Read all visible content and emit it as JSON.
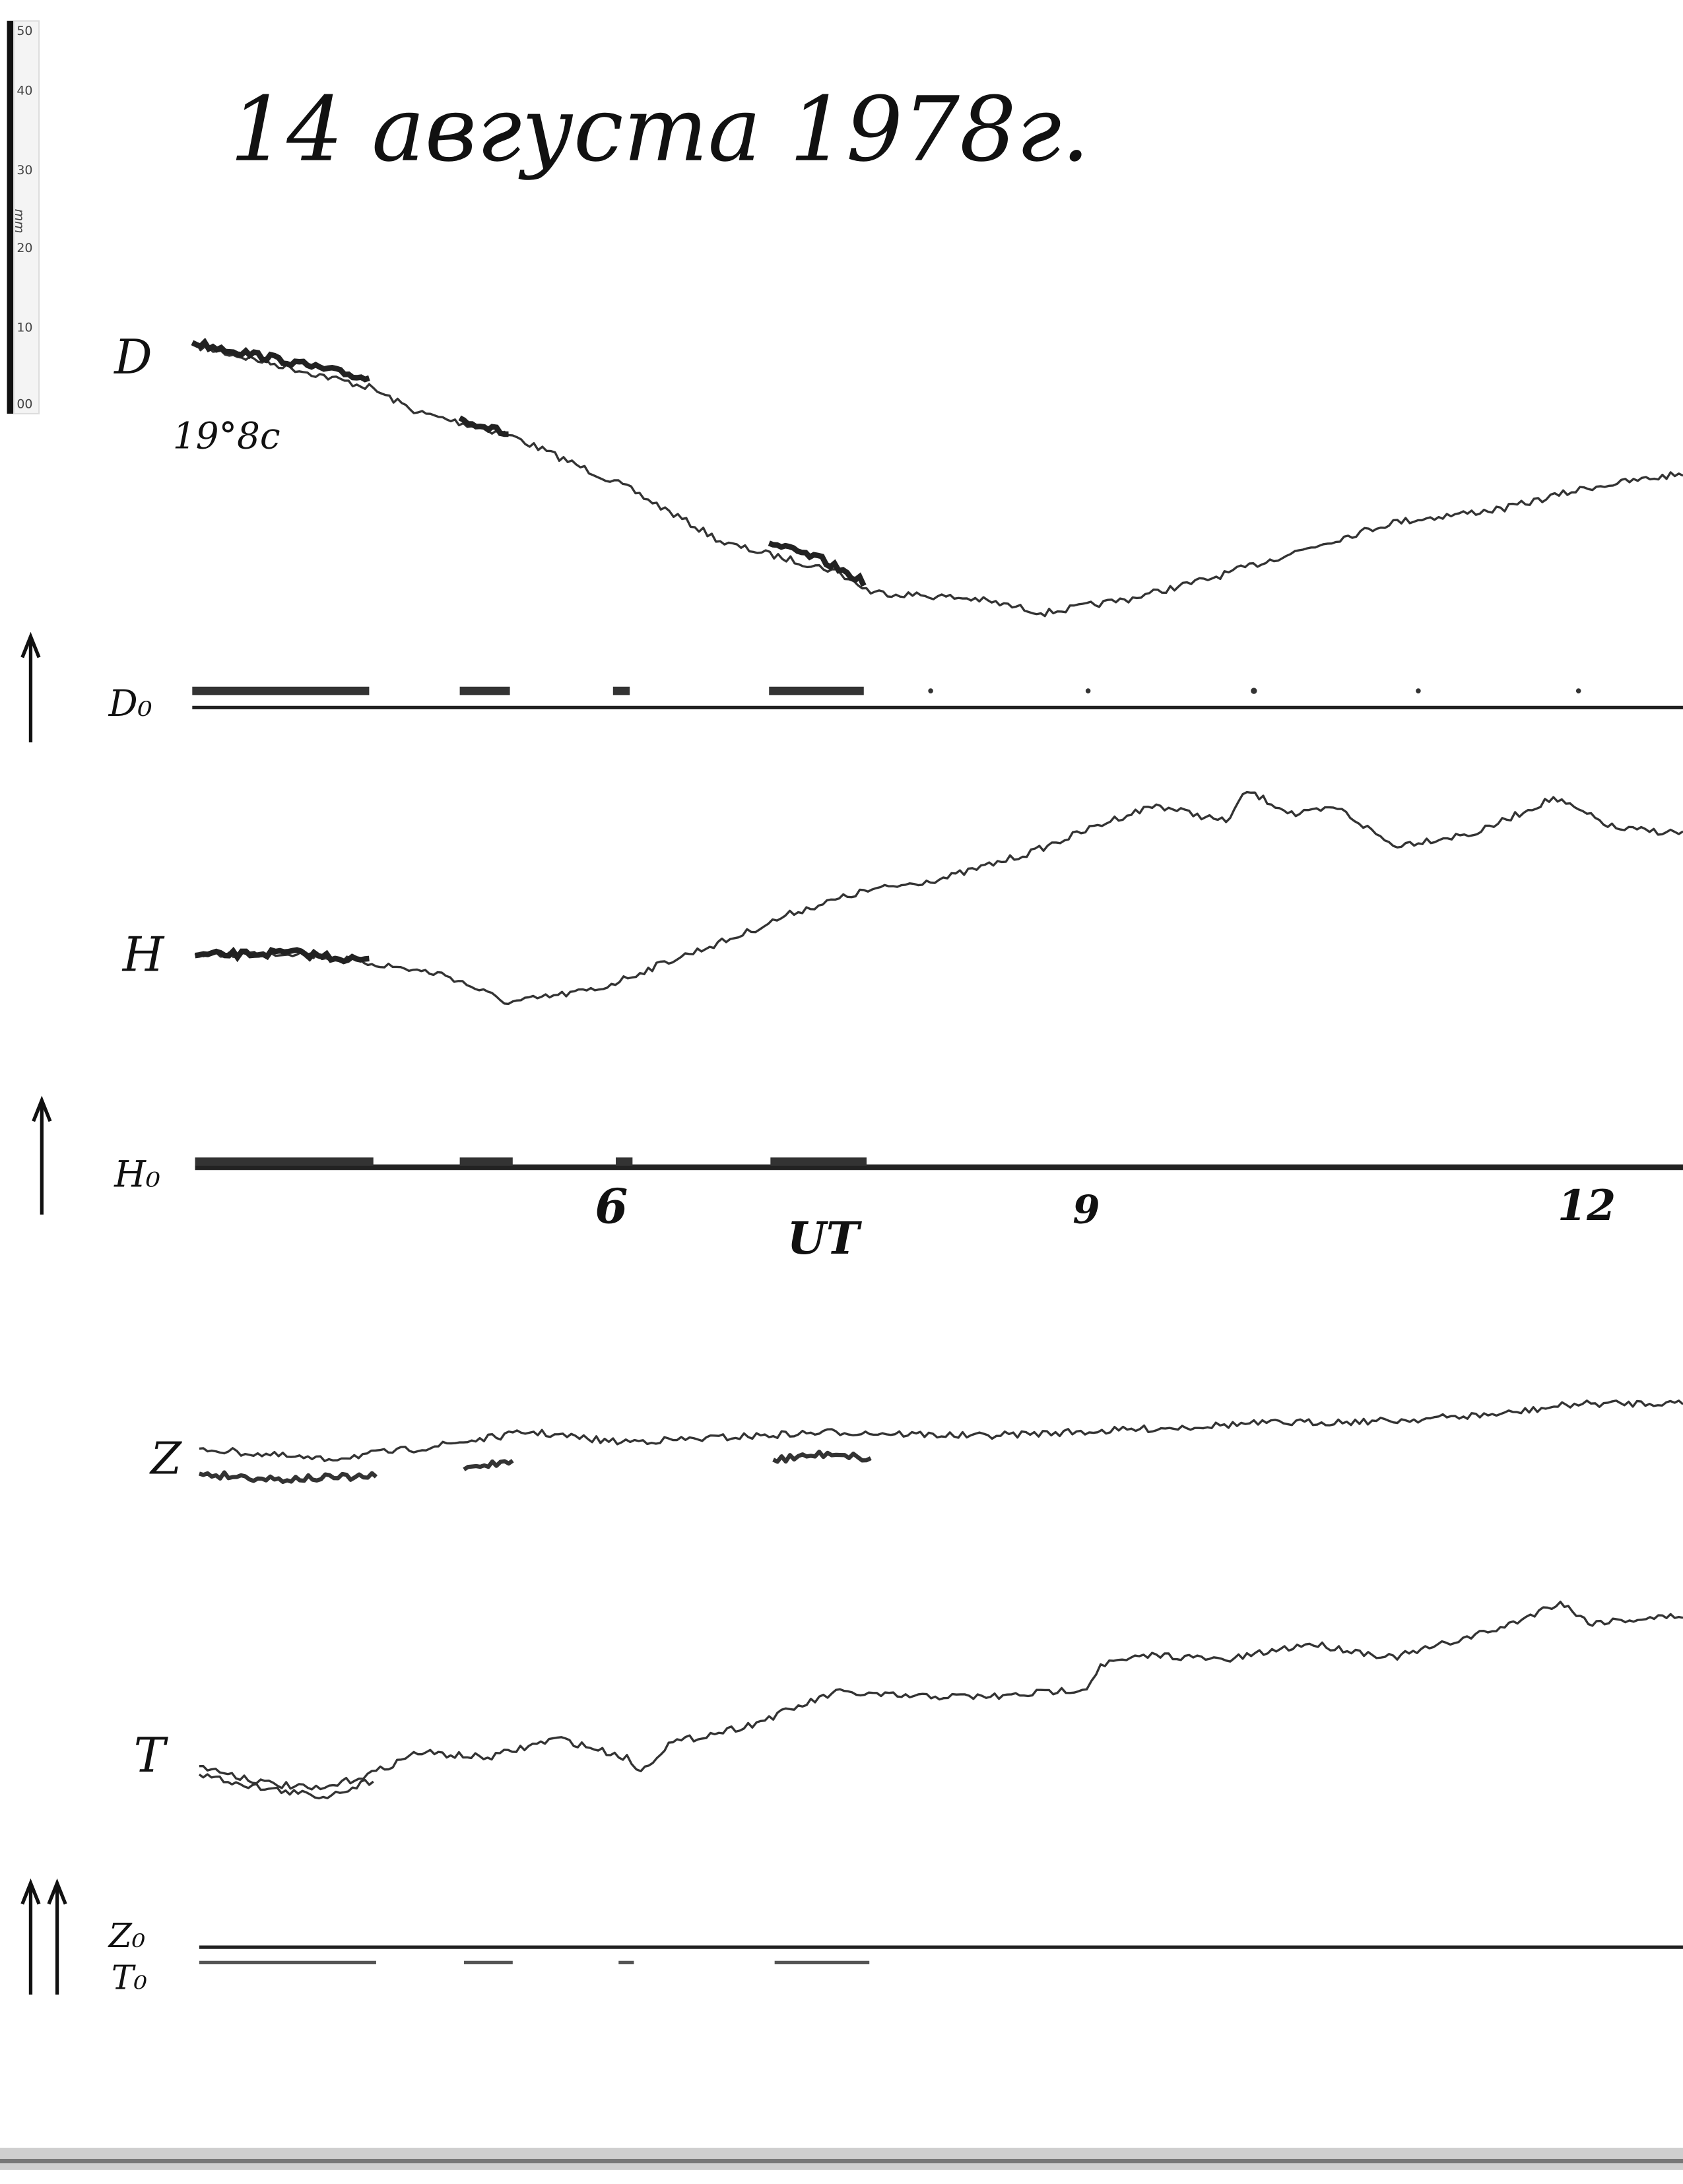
{
  "header": {
    "title": "14 августа 1978г."
  },
  "scale": {
    "ticks": [
      "50",
      "40",
      "30",
      "20",
      "10",
      "00"
    ],
    "unit": "mm"
  },
  "traces": [
    {
      "label": "D",
      "annotation": "19°8c"
    },
    {
      "label": "D₀"
    },
    {
      "label": "H"
    },
    {
      "label": "H₀"
    },
    {
      "label": "Z"
    },
    {
      "label": "T"
    },
    {
      "label": "Z₀"
    },
    {
      "label": "T₀"
    }
  ],
  "time_axis": {
    "ticks": [
      "6",
      "9",
      "12"
    ],
    "label": "UT"
  }
}
